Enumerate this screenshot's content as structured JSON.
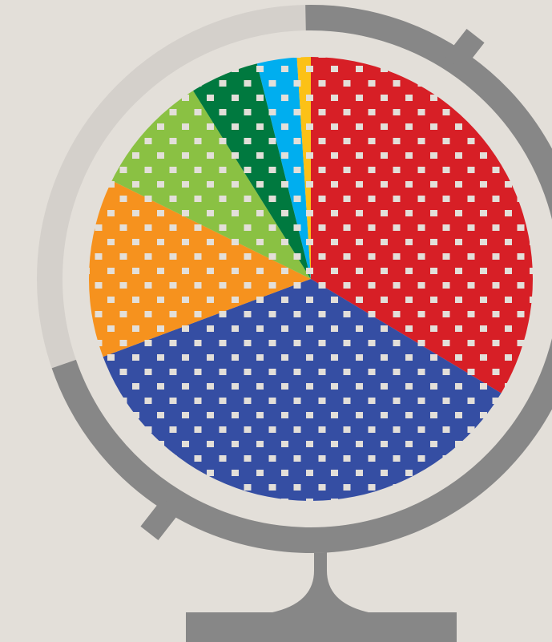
{
  "chart_data": {
    "type": "pie",
    "values": [
      33.6,
      35.7,
      13,
      8.8,
      5,
      2.9,
      1
    ],
    "colors": [
      "#d71f26",
      "#354ea3",
      "#f6921e",
      "#8ac143",
      "#00793f",
      "#00aeef",
      "#fcc117"
    ],
    "start_angle": 0,
    "direction": "clockwise"
  }
}
